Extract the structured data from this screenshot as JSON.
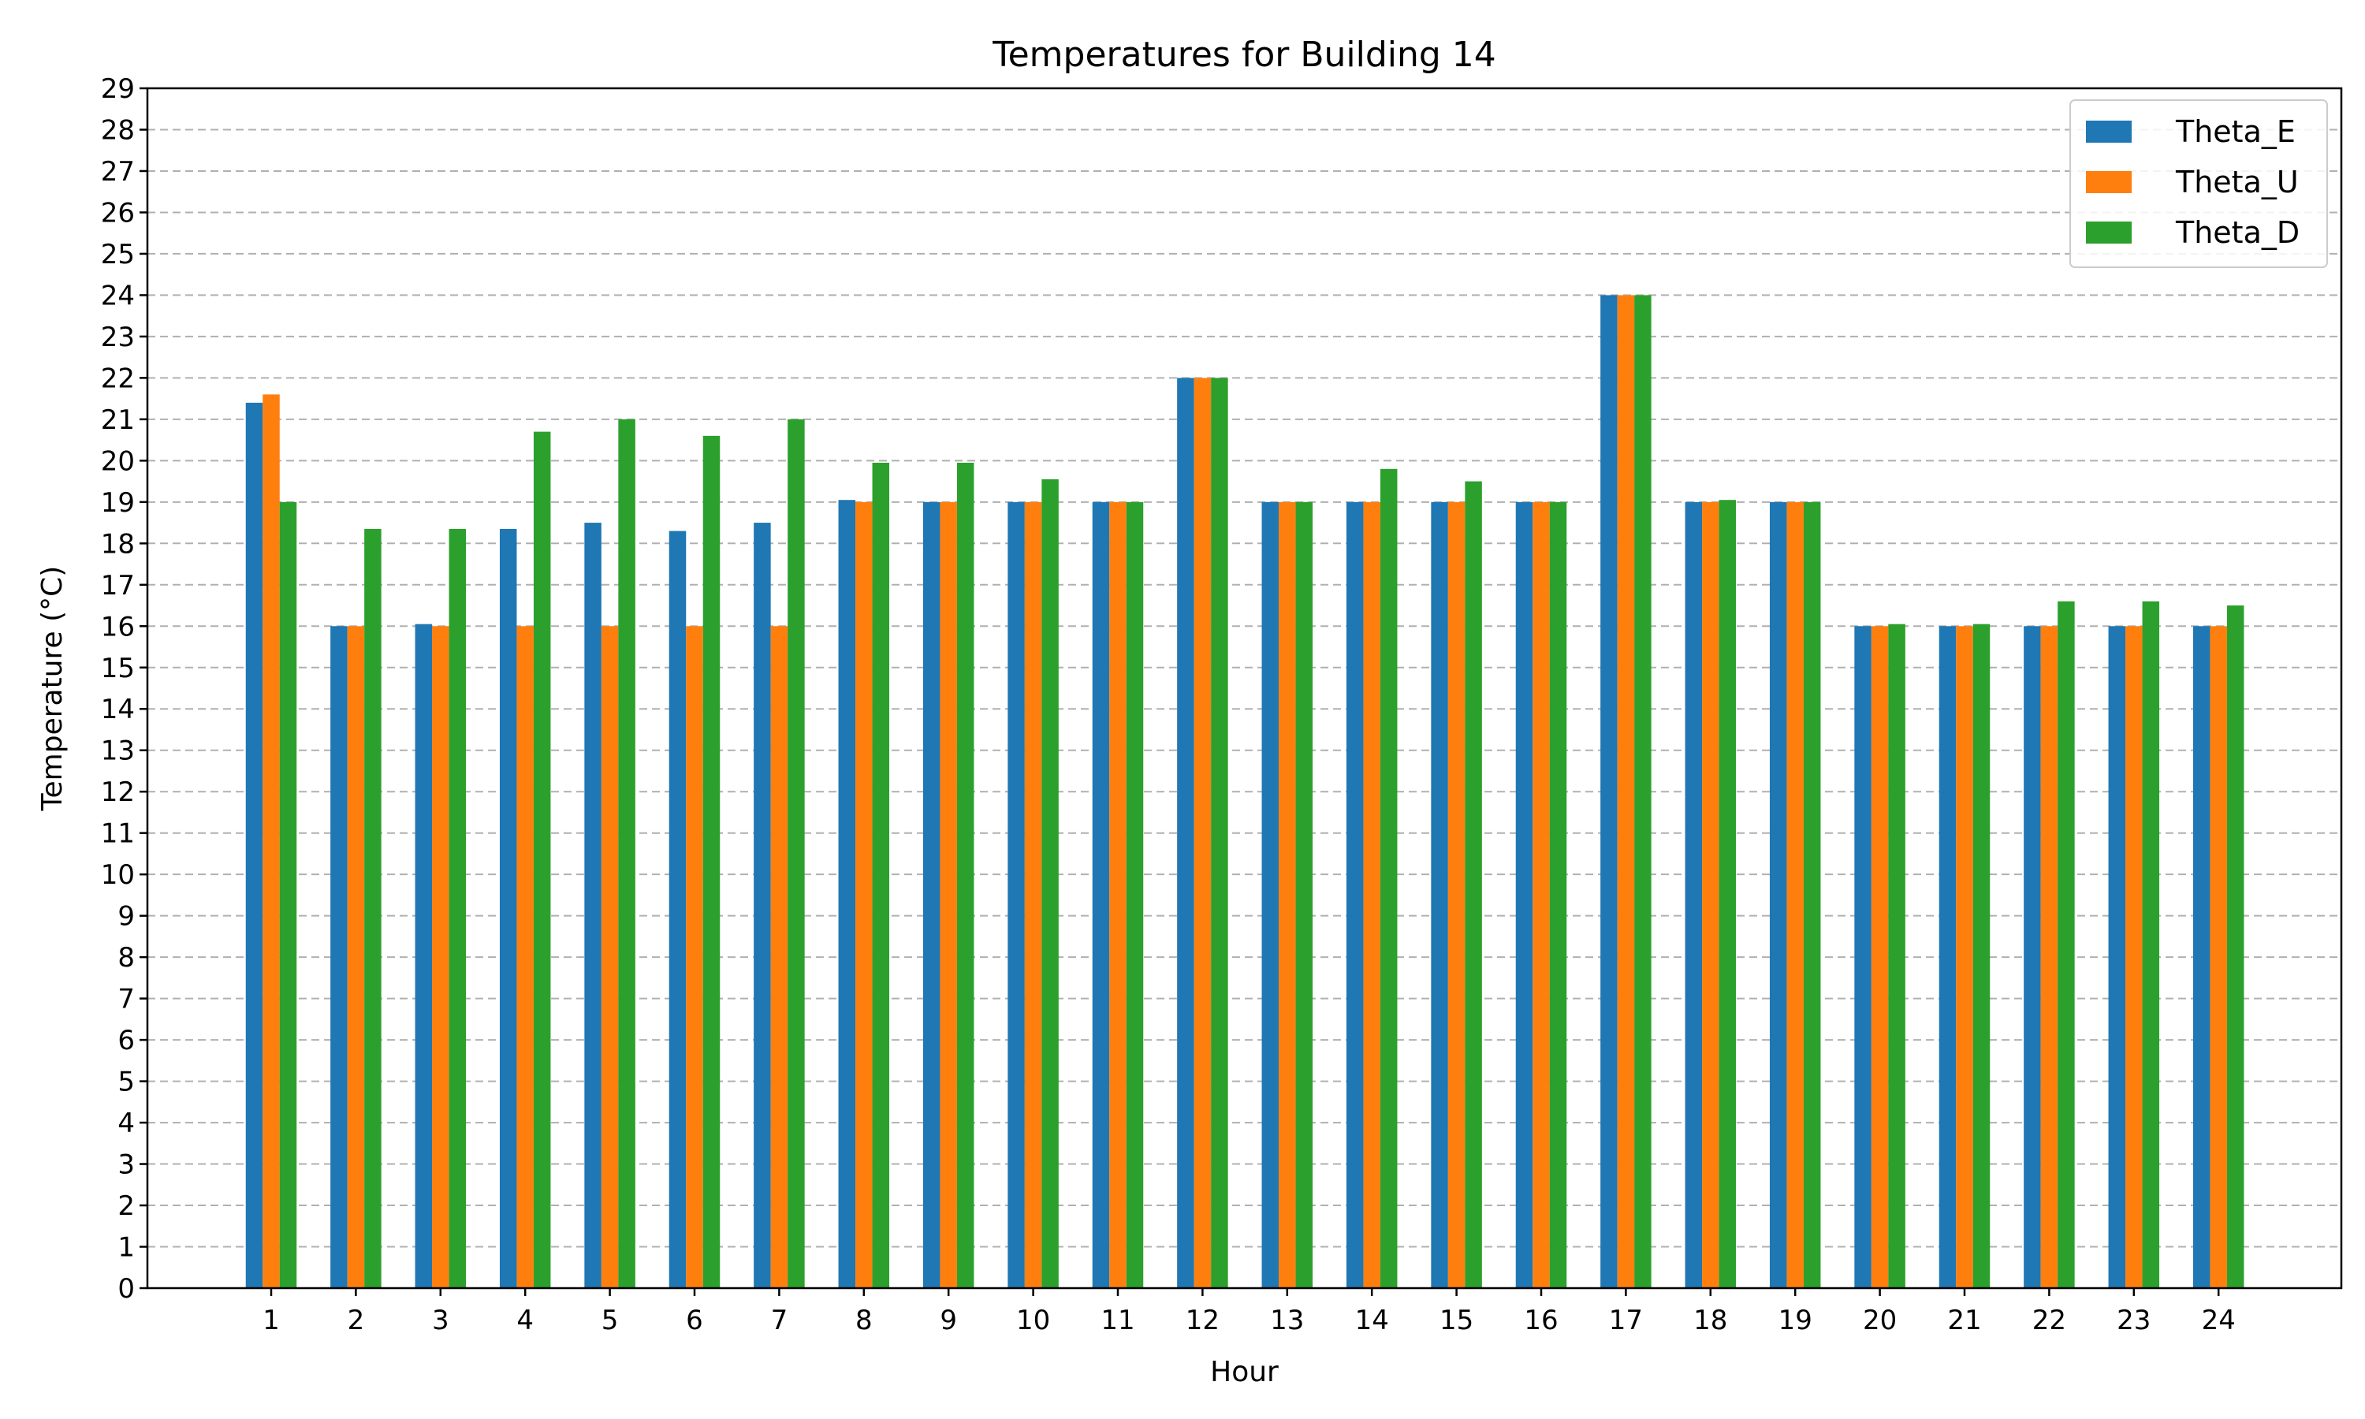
{
  "chart_data": {
    "type": "bar",
    "title": "Temperatures for Building 14",
    "xlabel": "Hour",
    "ylabel": "Temperature (°C)",
    "categories": [
      "1",
      "2",
      "3",
      "4",
      "5",
      "6",
      "7",
      "8",
      "9",
      "10",
      "11",
      "12",
      "13",
      "14",
      "15",
      "16",
      "17",
      "18",
      "19",
      "20",
      "21",
      "22",
      "23",
      "24"
    ],
    "series": [
      {
        "name": "Theta_E",
        "color": "#1f77b4",
        "values": [
          21.4,
          16.0,
          16.05,
          18.35,
          18.5,
          18.3,
          18.5,
          19.05,
          19.0,
          19.0,
          19.0,
          22.0,
          19.0,
          19.0,
          19.0,
          19.0,
          24.0,
          19.0,
          19.0,
          16.0,
          16.0,
          16.0,
          16.0,
          16.0
        ]
      },
      {
        "name": "Theta_U",
        "color": "#ff7f0e",
        "values": [
          21.6,
          16.0,
          16.0,
          16.0,
          16.0,
          16.0,
          16.0,
          19.0,
          19.0,
          19.0,
          19.0,
          22.0,
          19.0,
          19.0,
          19.0,
          19.0,
          24.0,
          19.0,
          19.0,
          16.0,
          16.0,
          16.0,
          16.0,
          16.0
        ]
      },
      {
        "name": "Theta_D",
        "color": "#2ca02c",
        "values": [
          19.0,
          18.35,
          18.35,
          20.7,
          21.0,
          20.6,
          21.0,
          19.95,
          19.95,
          19.55,
          19.0,
          22.0,
          19.0,
          19.8,
          19.5,
          19.0,
          24.0,
          19.05,
          19.0,
          16.05,
          16.05,
          16.6,
          16.6,
          16.5
        ]
      }
    ],
    "ylim": [
      0,
      29
    ],
    "yticks": [
      0,
      1,
      2,
      3,
      4,
      5,
      6,
      7,
      8,
      9,
      10,
      11,
      12,
      13,
      14,
      15,
      16,
      17,
      18,
      19,
      20,
      21,
      22,
      23,
      24,
      25,
      26,
      27,
      28,
      29
    ],
    "grid": "horizontal-dashed",
    "legend": "top-right"
  }
}
